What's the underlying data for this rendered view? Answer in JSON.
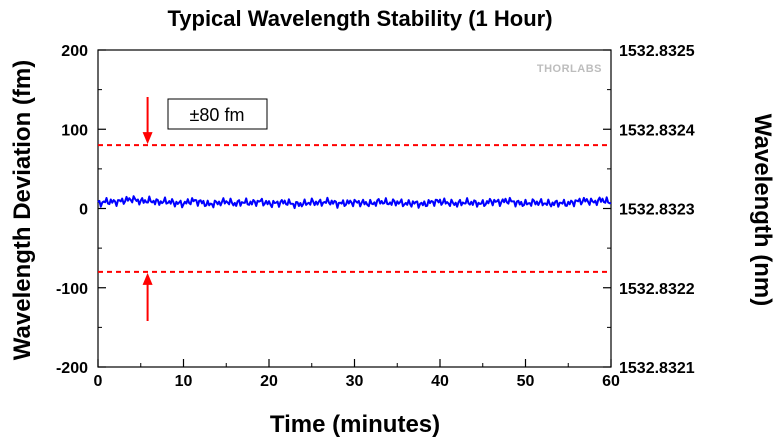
{
  "chart_data": {
    "type": "line",
    "title": "Typical Wavelength Stability (1 Hour)",
    "xlabel": "Time (minutes)",
    "ylabel": "Wavelength Deviation (fm)",
    "y2label": "Wavelength (nm)",
    "xlim": [
      0,
      60
    ],
    "ylim": [
      -200,
      200
    ],
    "xticks": [
      "0",
      "10",
      "20",
      "30",
      "40",
      "50",
      "60"
    ],
    "yticks": [
      "-200",
      "-100",
      "0",
      "100",
      "200"
    ],
    "y2ticks": [
      "1532.8321",
      "1532.8322",
      "1532.8323",
      "1532.8324",
      "1532.8325"
    ],
    "watermark": "THORLABS",
    "annotation": "±80 fm",
    "limits": [
      80,
      -80
    ],
    "series": [
      {
        "name": "Wavelength Deviation",
        "color": "#0000ff",
        "x": [
          0,
          1,
          2,
          3,
          4,
          5,
          6,
          7,
          8,
          9,
          10,
          11,
          12,
          13,
          14,
          15,
          16,
          17,
          18,
          19,
          20,
          21,
          22,
          23,
          24,
          25,
          26,
          27,
          28,
          29,
          30,
          31,
          32,
          33,
          34,
          35,
          36,
          37,
          38,
          39,
          40,
          41,
          42,
          43,
          44,
          45,
          46,
          47,
          48,
          49,
          50,
          51,
          52,
          53,
          54,
          55,
          56,
          57,
          58,
          59,
          60
        ],
        "values": [
          6,
          9,
          8,
          10,
          12,
          9,
          10,
          8,
          9,
          7,
          6,
          10,
          8,
          5,
          7,
          9,
          6,
          8,
          7,
          9,
          6,
          7,
          8,
          5,
          6,
          8,
          7,
          9,
          6,
          7,
          8,
          7,
          6,
          9,
          7,
          8,
          6,
          7,
          5,
          8,
          9,
          7,
          6,
          8,
          7,
          6,
          9,
          8,
          10,
          7,
          6,
          8,
          7,
          6,
          7,
          6,
          9,
          10,
          8,
          11,
          7
        ]
      }
    ],
    "colors": {
      "limit_line": "#ff0000",
      "arrow": "#ff0000",
      "axes": "#000000"
    }
  }
}
